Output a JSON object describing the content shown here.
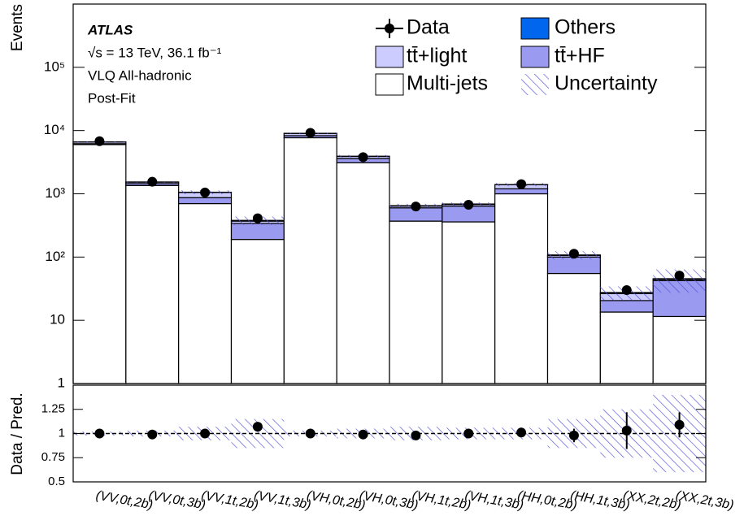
{
  "chart_data": [
    {
      "type": "bar",
      "stacked": true,
      "log_y": true,
      "ylabel": "Events",
      "annotations": [
        "ATLAS",
        "√s = 13 TeV, 36.1 fb⁻¹",
        "VLQ All-hadronic",
        "Post-Fit"
      ],
      "categories": [
        "(VV,0t,2b)",
        "(VV,0t,3b)",
        "(VV,1t,2b)",
        "(VV,1t,3b)",
        "(VH,0t,2b)",
        "(VH,0t,3b)",
        "(VH,1t,2b)",
        "(VH,1t,3b)",
        "(HH,0t,2b)",
        "(HH,1t,3b)",
        "(XX,2t,2b)",
        "(XX,2t,3b)"
      ],
      "series": [
        {
          "name": "Multi-jets",
          "color": "#ffffff",
          "values": [
            6000,
            1350,
            700,
            190,
            7700,
            3100,
            370,
            360,
            1000,
            55,
            13.5,
            11.5
          ]
        },
        {
          "name": "tt̄+HF",
          "color": "#9a9af0",
          "values": [
            200,
            100,
            170,
            150,
            600,
            500,
            230,
            280,
            200,
            45,
            7,
            31
          ]
        },
        {
          "name": "tt̄+light",
          "color": "#ccccff",
          "values": [
            400,
            80,
            180,
            30,
            700,
            300,
            40,
            40,
            190,
            6,
            6,
            2
          ]
        },
        {
          "name": "Others",
          "color": "#0066ee",
          "values": [
            30,
            10,
            10,
            10,
            50,
            30,
            10,
            10,
            10,
            2,
            1,
            1
          ]
        }
      ],
      "data": {
        "name": "Data",
        "color": "#000000",
        "values": [
          6800,
          1550,
          1050,
          410,
          9200,
          3800,
          630,
          670,
          1420,
          113,
          30,
          51
        ]
      },
      "uncertainty": {
        "name": "Uncertainty",
        "color": "#5050d8",
        "values": [
          0.02,
          0.03,
          0.07,
          0.15,
          0.03,
          0.05,
          0.07,
          0.06,
          0.06,
          0.15,
          0.25,
          0.4
        ]
      },
      "ylim": [
        1,
        1000000
      ],
      "yticks": [
        1,
        10,
        {
          "value": 100,
          "label": "10²"
        },
        {
          "value": 1000,
          "label": "10³"
        },
        {
          "value": 10000,
          "label": "10⁴"
        },
        {
          "value": 100000,
          "label": "10⁵"
        }
      ]
    },
    {
      "type": "scatter",
      "ylabel": "Data / Pred.",
      "values": [
        1.0,
        0.99,
        1.0,
        1.07,
        1.0,
        0.99,
        0.98,
        1.0,
        1.01,
        0.98,
        1.03,
        1.09
      ],
      "errors": [
        0.01,
        0.01,
        0.01,
        0.02,
        0.01,
        0.01,
        0.02,
        0.02,
        0.01,
        0.07,
        0.19,
        0.13
      ],
      "reference_line": 1,
      "ylim": [
        0.5,
        1.5
      ],
      "yticks": [
        0.5,
        0.75,
        1,
        1.25
      ]
    }
  ]
}
